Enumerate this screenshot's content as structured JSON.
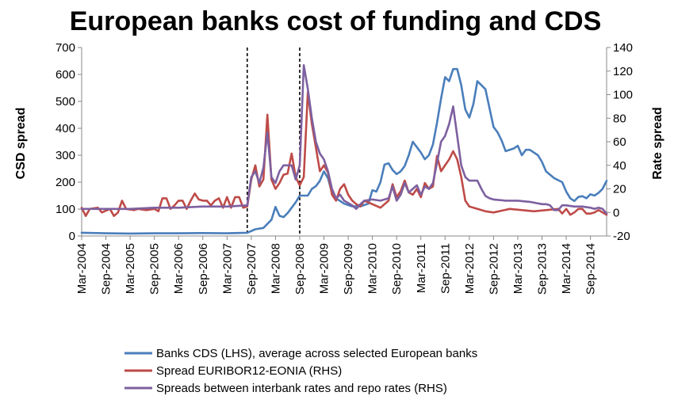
{
  "chart_data": {
    "type": "line",
    "title": "European banks cost of funding and CDS",
    "ylabel_left": "CSD spread",
    "ylabel_right": "Rate spread",
    "ylim_left": [
      0,
      700
    ],
    "ylim_right": [
      -20,
      140
    ],
    "yticks_left": [
      "0",
      "100",
      "200",
      "300",
      "400",
      "500",
      "600",
      "700"
    ],
    "yticks_right": [
      "-20",
      "0",
      "20",
      "40",
      "60",
      "80",
      "100",
      "120",
      "140"
    ],
    "x_range": [
      "Mar-2004",
      "Dec-2014"
    ],
    "xticks": [
      "Mar-2004",
      "Sep-2004",
      "Mar-2005",
      "Sep-2005",
      "Mar-2006",
      "Sep-2006",
      "Mar-2007",
      "Sep-2007",
      "Mar-2008",
      "Sep-2008",
      "Mar-2009",
      "Sep-2009",
      "Mar-2010",
      "Sep-2010",
      "Mar-2011",
      "Sep-2011",
      "Mar-2012",
      "Sep-2012",
      "Mar-2013",
      "Sep-2013",
      "Mar-2014",
      "Sep-2014"
    ],
    "vlines": [
      "Aug-2007",
      "Sep-2008"
    ],
    "grid": false,
    "legend_position": "bottom",
    "series": [
      {
        "name": "Banks CDS (LHS), average across selected European banks",
        "axis": "left",
        "color": "#4a7ebb",
        "points": [
          [
            "Mar-2004",
            12
          ],
          [
            "Sep-2004",
            10
          ],
          [
            "Mar-2005",
            9
          ],
          [
            "Sep-2005",
            10
          ],
          [
            "Mar-2006",
            10
          ],
          [
            "Sep-2006",
            11
          ],
          [
            "Mar-2007",
            10
          ],
          [
            "Aug-2007",
            12
          ],
          [
            "Oct-2007",
            25
          ],
          [
            "Dec-2007",
            30
          ],
          [
            "Feb-2008",
            60
          ],
          [
            "Mar-2008",
            108
          ],
          [
            "Apr-2008",
            75
          ],
          [
            "May-2008",
            70
          ],
          [
            "Jun-2008",
            85
          ],
          [
            "Jul-2008",
            105
          ],
          [
            "Aug-2008",
            125
          ],
          [
            "Sep-2008",
            150
          ],
          [
            "Oct-2008",
            150
          ],
          [
            "Nov-2008",
            150
          ],
          [
            "Dec-2008",
            175
          ],
          [
            "Jan-2009",
            185
          ],
          [
            "Feb-2009",
            205
          ],
          [
            "Mar-2009",
            240
          ],
          [
            "Apr-2009",
            215
          ],
          [
            "May-2009",
            160
          ],
          [
            "Jun-2009",
            140
          ],
          [
            "Aug-2009",
            120
          ],
          [
            "Oct-2009",
            110
          ],
          [
            "Dec-2009",
            110
          ],
          [
            "Feb-2010",
            120
          ],
          [
            "Mar-2010",
            170
          ],
          [
            "Apr-2010",
            165
          ],
          [
            "May-2010",
            200
          ],
          [
            "Jun-2010",
            265
          ],
          [
            "Jul-2010",
            270
          ],
          [
            "Aug-2010",
            245
          ],
          [
            "Sep-2010",
            230
          ],
          [
            "Oct-2010",
            240
          ],
          [
            "Nov-2010",
            260
          ],
          [
            "Dec-2010",
            300
          ],
          [
            "Jan-2011",
            350
          ],
          [
            "Feb-2011",
            330
          ],
          [
            "Mar-2011",
            310
          ],
          [
            "Apr-2011",
            285
          ],
          [
            "May-2011",
            300
          ],
          [
            "Jun-2011",
            340
          ],
          [
            "Jul-2011",
            420
          ],
          [
            "Aug-2011",
            510
          ],
          [
            "Sep-2011",
            590
          ],
          [
            "Oct-2011",
            575
          ],
          [
            "Nov-2011",
            620
          ],
          [
            "Dec-2011",
            620
          ],
          [
            "Jan-2012",
            560
          ],
          [
            "Feb-2012",
            470
          ],
          [
            "Mar-2012",
            440
          ],
          [
            "Apr-2012",
            490
          ],
          [
            "May-2012",
            575
          ],
          [
            "Jun-2012",
            560
          ],
          [
            "Jul-2012",
            545
          ],
          [
            "Aug-2012",
            475
          ],
          [
            "Sep-2012",
            405
          ],
          [
            "Oct-2012",
            385
          ],
          [
            "Nov-2012",
            355
          ],
          [
            "Dec-2012",
            315
          ],
          [
            "Feb-2013",
            325
          ],
          [
            "Mar-2013",
            335
          ],
          [
            "Apr-2013",
            300
          ],
          [
            "May-2013",
            320
          ],
          [
            "Jun-2013",
            320
          ],
          [
            "Aug-2013",
            300
          ],
          [
            "Sep-2013",
            275
          ],
          [
            "Oct-2013",
            240
          ],
          [
            "Dec-2013",
            215
          ],
          [
            "Feb-2014",
            200
          ],
          [
            "Mar-2014",
            165
          ],
          [
            "Apr-2014",
            140
          ],
          [
            "May-2014",
            130
          ],
          [
            "Jun-2014",
            145
          ],
          [
            "Jul-2014",
            148
          ],
          [
            "Aug-2014",
            140
          ],
          [
            "Sep-2014",
            155
          ],
          [
            "Oct-2014",
            150
          ],
          [
            "Nov-2014",
            160
          ],
          [
            "Dec-2014",
            175
          ],
          [
            "Jan-2015",
            205
          ]
        ]
      },
      {
        "name": "Spread EURIBOR12-EONIA (RHS)",
        "axis": "right",
        "color": "#be4b48",
        "points": [
          [
            "Mar-2004",
            4
          ],
          [
            "Apr-2004",
            -3
          ],
          [
            "May-2004",
            3
          ],
          [
            "Jul-2004",
            4
          ],
          [
            "Aug-2004",
            0
          ],
          [
            "Oct-2004",
            3
          ],
          [
            "Nov-2004",
            -3
          ],
          [
            "Dec-2004",
            0
          ],
          [
            "Jan-2005",
            10
          ],
          [
            "Feb-2005",
            3
          ],
          [
            "Apr-2005",
            2
          ],
          [
            "May-2005",
            3
          ],
          [
            "Jul-2005",
            2
          ],
          [
            "Sep-2005",
            3
          ],
          [
            "Oct-2005",
            1
          ],
          [
            "Nov-2005",
            12
          ],
          [
            "Dec-2005",
            12
          ],
          [
            "Jan-2006",
            3
          ],
          [
            "Feb-2006",
            6
          ],
          [
            "Mar-2006",
            10
          ],
          [
            "Apr-2006",
            10
          ],
          [
            "May-2006",
            3
          ],
          [
            "Jun-2006",
            10
          ],
          [
            "Jul-2006",
            16
          ],
          [
            "Aug-2006",
            11
          ],
          [
            "Sep-2006",
            10
          ],
          [
            "Oct-2006",
            10
          ],
          [
            "Nov-2006",
            6
          ],
          [
            "Dec-2006",
            10
          ],
          [
            "Jan-2007",
            12
          ],
          [
            "Feb-2007",
            4
          ],
          [
            "Mar-2007",
            13
          ],
          [
            "Apr-2007",
            4
          ],
          [
            "May-2007",
            13
          ],
          [
            "Jun-2007",
            13
          ],
          [
            "Jul-2007",
            4
          ],
          [
            "Aug-2007",
            5
          ],
          [
            "Sep-2007",
            28
          ],
          [
            "Oct-2007",
            40
          ],
          [
            "Nov-2007",
            22
          ],
          [
            "Dec-2007",
            28
          ],
          [
            "Jan-2008",
            83
          ],
          [
            "Feb-2008",
            28
          ],
          [
            "Mar-2008",
            20
          ],
          [
            "Apr-2008",
            25
          ],
          [
            "May-2008",
            32
          ],
          [
            "Jun-2008",
            33
          ],
          [
            "Jul-2008",
            50
          ],
          [
            "Aug-2008",
            30
          ],
          [
            "Sep-2008",
            23
          ],
          [
            "Oct-2008",
            30
          ],
          [
            "Nov-2008",
            102
          ],
          [
            "Dec-2008",
            75
          ],
          [
            "Jan-2009",
            55
          ],
          [
            "Feb-2009",
            35
          ],
          [
            "Mar-2009",
            40
          ],
          [
            "Apr-2009",
            34
          ],
          [
            "May-2009",
            15
          ],
          [
            "Jun-2009",
            10
          ],
          [
            "Jul-2009",
            20
          ],
          [
            "Aug-2009",
            24
          ],
          [
            "Sep-2009",
            15
          ],
          [
            "Oct-2009",
            10
          ],
          [
            "Nov-2009",
            7
          ],
          [
            "Dec-2009",
            5
          ],
          [
            "Jan-2010",
            10
          ],
          [
            "Mar-2010",
            7
          ],
          [
            "May-2010",
            4
          ],
          [
            "Jul-2010",
            10
          ],
          [
            "Aug-2010",
            24
          ],
          [
            "Sep-2010",
            13
          ],
          [
            "Oct-2010",
            18
          ],
          [
            "Nov-2010",
            27
          ],
          [
            "Dec-2010",
            17
          ],
          [
            "Jan-2011",
            15
          ],
          [
            "Feb-2011",
            20
          ],
          [
            "Mar-2011",
            13
          ],
          [
            "Apr-2011",
            25
          ],
          [
            "May-2011",
            20
          ],
          [
            "Jun-2011",
            22
          ],
          [
            "Jul-2011",
            48
          ],
          [
            "Aug-2011",
            35
          ],
          [
            "Sep-2011",
            40
          ],
          [
            "Oct-2011",
            45
          ],
          [
            "Nov-2011",
            52
          ],
          [
            "Dec-2011",
            45
          ],
          [
            "Jan-2012",
            30
          ],
          [
            "Feb-2012",
            10
          ],
          [
            "Mar-2012",
            5
          ],
          [
            "May-2012",
            3
          ],
          [
            "Jul-2012",
            1
          ],
          [
            "Sep-2012",
            0
          ],
          [
            "Jan-2013",
            3
          ],
          [
            "Apr-2013",
            2
          ],
          [
            "Jul-2013",
            1
          ],
          [
            "Oct-2013",
            2
          ],
          [
            "Jan-2014",
            3
          ],
          [
            "Feb-2014",
            -1
          ],
          [
            "Mar-2014",
            3
          ],
          [
            "Apr-2014",
            -2
          ],
          [
            "May-2014",
            0
          ],
          [
            "Jun-2014",
            3
          ],
          [
            "Jul-2014",
            3
          ],
          [
            "Aug-2014",
            -1
          ],
          [
            "Sep-2014",
            -1
          ],
          [
            "Oct-2014",
            0
          ],
          [
            "Nov-2014",
            2
          ],
          [
            "Dec-2014",
            0
          ],
          [
            "Jan-2015",
            -2
          ]
        ]
      },
      {
        "name": "Spreads between interbank rates and repo rates (RHS)",
        "axis": "right",
        "color": "#7d60a0",
        "points": [
          [
            "Mar-2004",
            3
          ],
          [
            "Sep-2004",
            3
          ],
          [
            "Mar-2005",
            3
          ],
          [
            "Sep-2005",
            4
          ],
          [
            "Mar-2006",
            4
          ],
          [
            "Sep-2006",
            5
          ],
          [
            "Mar-2007",
            5
          ],
          [
            "Aug-2007",
            6
          ],
          [
            "Sep-2007",
            30
          ],
          [
            "Oct-2007",
            35
          ],
          [
            "Nov-2007",
            25
          ],
          [
            "Dec-2007",
            38
          ],
          [
            "Jan-2008",
            68
          ],
          [
            "Feb-2008",
            30
          ],
          [
            "Mar-2008",
            25
          ],
          [
            "Apr-2008",
            35
          ],
          [
            "May-2008",
            40
          ],
          [
            "Jun-2008",
            40
          ],
          [
            "Jul-2008",
            40
          ],
          [
            "Aug-2008",
            28
          ],
          [
            "Sep-2008",
            40
          ],
          [
            "Oct-2008",
            125
          ],
          [
            "Nov-2008",
            105
          ],
          [
            "Dec-2008",
            80
          ],
          [
            "Jan-2009",
            60
          ],
          [
            "Feb-2009",
            50
          ],
          [
            "Mar-2009",
            45
          ],
          [
            "Apr-2009",
            35
          ],
          [
            "May-2009",
            20
          ],
          [
            "Jun-2009",
            12
          ],
          [
            "Jul-2009",
            15
          ],
          [
            "Aug-2009",
            10
          ],
          [
            "Sep-2009",
            8
          ],
          [
            "Oct-2009",
            6
          ],
          [
            "Nov-2009",
            3
          ],
          [
            "Dec-2009",
            7
          ],
          [
            "Jan-2010",
            10
          ],
          [
            "Mar-2010",
            11
          ],
          [
            "May-2010",
            10
          ],
          [
            "Jul-2010",
            12
          ],
          [
            "Aug-2010",
            22
          ],
          [
            "Sep-2010",
            10
          ],
          [
            "Oct-2010",
            15
          ],
          [
            "Nov-2010",
            25
          ],
          [
            "Dec-2010",
            17
          ],
          [
            "Jan-2011",
            20
          ],
          [
            "Feb-2011",
            23
          ],
          [
            "Mar-2011",
            15
          ],
          [
            "Apr-2011",
            22
          ],
          [
            "May-2011",
            20
          ],
          [
            "Jun-2011",
            25
          ],
          [
            "Jul-2011",
            42
          ],
          [
            "Aug-2011",
            60
          ],
          [
            "Sep-2011",
            65
          ],
          [
            "Oct-2011",
            75
          ],
          [
            "Nov-2011",
            90
          ],
          [
            "Dec-2011",
            65
          ],
          [
            "Jan-2012",
            40
          ],
          [
            "Feb-2012",
            30
          ],
          [
            "Mar-2012",
            27
          ],
          [
            "May-2012",
            27
          ],
          [
            "Jun-2012",
            20
          ],
          [
            "Jul-2012",
            14
          ],
          [
            "Aug-2012",
            12
          ],
          [
            "Sep-2012",
            11
          ],
          [
            "Dec-2012",
            10
          ],
          [
            "Mar-2013",
            10
          ],
          [
            "Jun-2013",
            9
          ],
          [
            "Sep-2013",
            7
          ],
          [
            "Oct-2013",
            7
          ],
          [
            "Nov-2013",
            6
          ],
          [
            "Dec-2013",
            2
          ],
          [
            "Jan-2014",
            2
          ],
          [
            "Feb-2014",
            6
          ],
          [
            "Mar-2014",
            6
          ],
          [
            "May-2014",
            5
          ],
          [
            "Jul-2014",
            5
          ],
          [
            "Sep-2014",
            4
          ],
          [
            "Oct-2014",
            3
          ],
          [
            "Nov-2014",
            4
          ],
          [
            "Dec-2014",
            3
          ],
          [
            "Jan-2015",
            -1
          ]
        ]
      }
    ]
  }
}
